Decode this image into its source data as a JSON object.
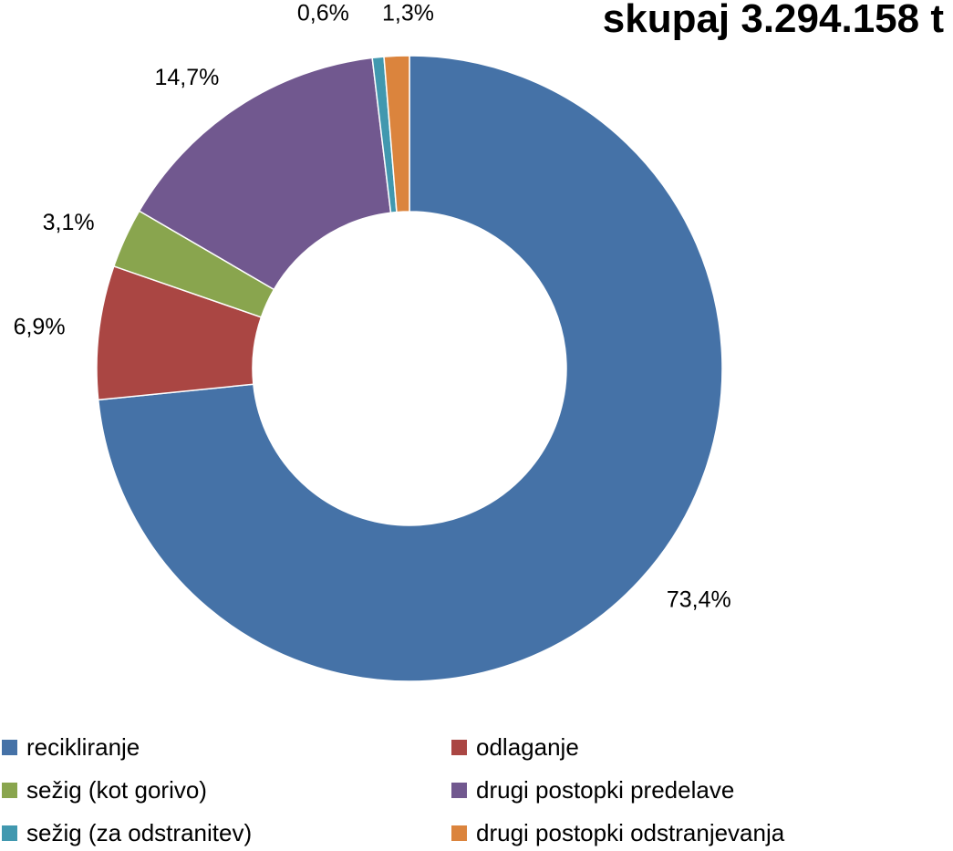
{
  "chart_data": {
    "type": "pie",
    "donut": true,
    "title": "skupaj 3.294.158 t",
    "categories": [
      "recikliranje",
      "odlaganje",
      "sežig (kot gorivo)",
      "drugi postopki predelave",
      "sežig (za odstranitev)",
      "drugi postopki odstranjevanja"
    ],
    "values": [
      73.4,
      6.9,
      3.1,
      14.7,
      0.6,
      1.3
    ],
    "labels": [
      "73,4%",
      "6,9%",
      "3,1%",
      "14,7%",
      "0,6%",
      "1,3%"
    ],
    "colors": [
      "#4572A7",
      "#AA4643",
      "#89A54E",
      "#71588F",
      "#4198AF",
      "#DB843D"
    ],
    "legend_position": "bottom"
  },
  "legend": [
    {
      "label": "recikliranje",
      "color": "#4572A7"
    },
    {
      "label": "odlaganje",
      "color": "#AA4643"
    },
    {
      "label": "sežig (kot gorivo)",
      "color": "#89A54E"
    },
    {
      "label": "drugi postopki predelave",
      "color": "#71588F"
    },
    {
      "label": "sežig (za odstranitev)",
      "color": "#4198AF"
    },
    {
      "label": "drugi postopki odstranjevanja",
      "color": "#DB843D"
    }
  ]
}
